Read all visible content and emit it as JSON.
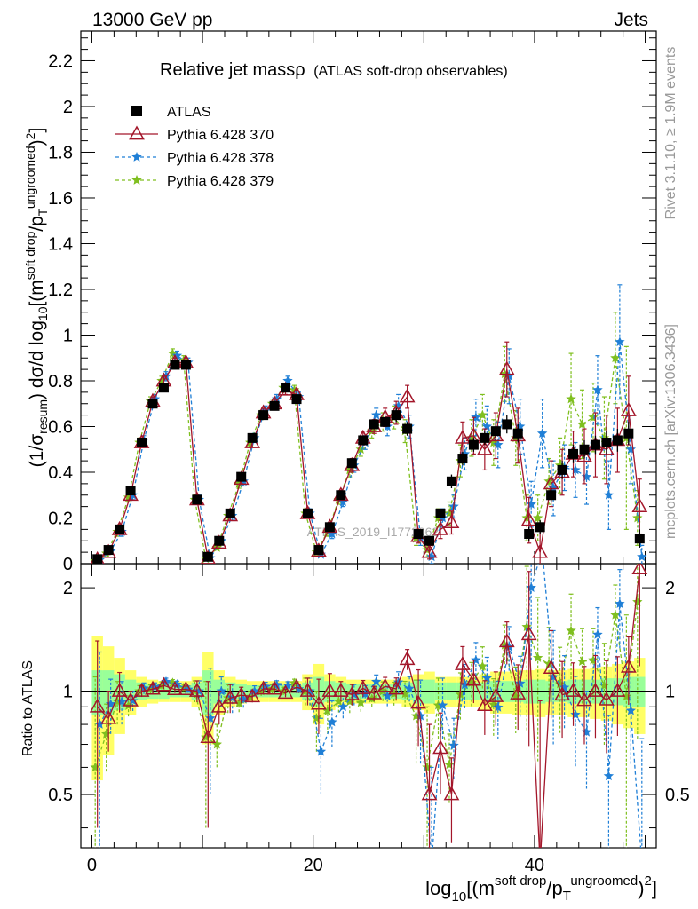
{
  "header": {
    "left": "13000 GeV pp",
    "right": "Jets"
  },
  "title": {
    "main": "Relative jet massρ",
    "sub": "(ATLAS soft-drop observables)"
  },
  "side_labels": {
    "rivet": "Rivet 3.1.10, ≥ 1.9M events",
    "mcplots": "mcplots.cern.ch [arXiv:1306.3436]"
  },
  "watermark": "ATLAS_2019_I1772062",
  "axis_labels": {
    "y_main": "(1/σresum) dσ/d log10[(msoft drop/pTungroomed)2]",
    "y_ratio": "Ratio to ATLAS",
    "x": "log10[(msoft drop/pTungroomed)2]"
  },
  "legend": [
    {
      "name": "ATLAS",
      "color": "#000000",
      "marker": "square"
    },
    {
      "name": "Pythia 6.428 370",
      "color": "#a3162a",
      "marker": "open-triangle"
    },
    {
      "name": "Pythia 6.428 378",
      "color": "#1f7fd6",
      "marker": "star"
    },
    {
      "name": "Pythia 6.428 379",
      "color": "#7fbf1f",
      "marker": "star"
    }
  ],
  "colors": {
    "band_inner": "#99ff99",
    "band_outer": "#ffff66"
  },
  "chart_data": {
    "type": "scatter",
    "x": [
      0.5,
      1.5,
      2.5,
      3.5,
      4.5,
      5.5,
      6.5,
      7.5,
      8.5,
      9.5,
      10.5,
      11.5,
      12.5,
      13.5,
      14.5,
      15.5,
      16.5,
      17.5,
      18.5,
      19.5,
      20.5,
      21.5,
      22.5,
      23.5,
      24.5,
      25.5,
      26.5,
      27.5,
      28.5,
      29.5,
      30.5,
      31.5,
      32.5,
      33.5,
      34.5,
      35.5,
      36.5,
      37.5,
      38.5,
      39.5,
      40.5,
      41.5,
      42.5,
      43.5,
      44.5,
      45.5,
      46.5,
      47.5,
      48.5,
      49.5
    ],
    "xlim": [
      -1,
      51
    ],
    "main_ylim": [
      0,
      2.33
    ],
    "ratio_ylim": [
      0.35,
      2.35
    ],
    "x_ticks": [
      0,
      20,
      40
    ],
    "main_y_ticks": [
      0,
      0.2,
      0.4,
      0.6,
      0.8,
      1,
      1.2,
      1.4,
      1.6,
      1.8,
      2,
      2.2
    ],
    "ratio_y_ticks": [
      0.5,
      1,
      2
    ],
    "data": {
      "name": "ATLAS",
      "values": [
        0.02,
        0.06,
        0.15,
        0.32,
        0.53,
        0.7,
        0.77,
        0.87,
        0.87,
        0.28,
        0.03,
        0.1,
        0.22,
        0.38,
        0.55,
        0.65,
        0.69,
        0.77,
        0.72,
        0.22,
        0.06,
        0.16,
        0.3,
        0.44,
        0.54,
        0.61,
        0.62,
        0.65,
        0.59,
        0.13,
        0.1,
        0.22,
        0.36,
        0.46,
        0.52,
        0.55,
        0.58,
        0.61,
        0.57,
        0.13,
        0.16,
        0.3,
        0.41,
        0.48,
        0.5,
        0.52,
        0.53,
        0.54,
        0.57,
        0.11
      ],
      "errors": [
        0.005,
        0.006,
        0.01,
        0.02,
        0.02,
        0.02,
        0.02,
        0.02,
        0.02,
        0.02,
        0.005,
        0.01,
        0.01,
        0.02,
        0.02,
        0.02,
        0.02,
        0.02,
        0.02,
        0.02,
        0.01,
        0.01,
        0.02,
        0.02,
        0.02,
        0.02,
        0.02,
        0.03,
        0.03,
        0.02,
        0.02,
        0.02,
        0.03,
        0.03,
        0.03,
        0.03,
        0.04,
        0.04,
        0.04,
        0.03,
        0.03,
        0.03,
        0.04,
        0.04,
        0.04,
        0.04,
        0.05,
        0.05,
        0.05,
        0.04
      ]
    },
    "series": [
      {
        "name": "Pythia 6.428 370",
        "values": [
          0.018,
          0.05,
          0.15,
          0.3,
          0.53,
          0.71,
          0.8,
          0.88,
          0.88,
          0.28,
          0.022,
          0.09,
          0.21,
          0.37,
          0.53,
          0.66,
          0.7,
          0.76,
          0.74,
          0.22,
          0.055,
          0.16,
          0.3,
          0.43,
          0.55,
          0.6,
          0.64,
          0.66,
          0.73,
          0.12,
          0.05,
          0.15,
          0.18,
          0.55,
          0.56,
          0.5,
          0.56,
          0.85,
          0.56,
          0.19,
          0.05,
          0.35,
          0.4,
          0.48,
          0.47,
          0.52,
          0.5,
          0.54,
          0.67,
          0.25
        ],
        "errors": [
          0.01,
          0.01,
          0.02,
          0.02,
          0.02,
          0.02,
          0.02,
          0.02,
          0.02,
          0.02,
          0.01,
          0.01,
          0.02,
          0.02,
          0.02,
          0.02,
          0.02,
          0.02,
          0.02,
          0.02,
          0.01,
          0.02,
          0.02,
          0.03,
          0.03,
          0.03,
          0.04,
          0.05,
          0.05,
          0.03,
          0.03,
          0.04,
          0.05,
          0.07,
          0.08,
          0.09,
          0.1,
          0.12,
          0.12,
          0.1,
          0.1,
          0.1,
          0.1,
          0.1,
          0.12,
          0.14,
          0.15,
          0.14,
          0.15,
          0.12
        ]
      },
      {
        "name": "Pythia 6.428 378",
        "values": [
          0.016,
          0.055,
          0.14,
          0.3,
          0.54,
          0.72,
          0.82,
          0.91,
          0.88,
          0.28,
          0.025,
          0.1,
          0.21,
          0.36,
          0.55,
          0.67,
          0.72,
          0.8,
          0.73,
          0.22,
          0.04,
          0.13,
          0.27,
          0.43,
          0.53,
          0.65,
          0.6,
          0.69,
          0.6,
          0.11,
          0.03,
          0.2,
          0.25,
          0.48,
          0.64,
          0.6,
          0.52,
          0.82,
          0.6,
          0.26,
          0.57,
          0.33,
          0.42,
          0.41,
          0.38,
          0.76,
          0.3,
          0.97,
          0.5,
          0.03
        ],
        "errors": [
          0.01,
          0.01,
          0.02,
          0.02,
          0.02,
          0.02,
          0.02,
          0.02,
          0.02,
          0.02,
          0.01,
          0.01,
          0.02,
          0.02,
          0.02,
          0.02,
          0.02,
          0.02,
          0.02,
          0.02,
          0.01,
          0.02,
          0.02,
          0.03,
          0.03,
          0.03,
          0.04,
          0.05,
          0.05,
          0.03,
          0.03,
          0.04,
          0.05,
          0.07,
          0.08,
          0.09,
          0.1,
          0.12,
          0.12,
          0.1,
          0.15,
          0.12,
          0.1,
          0.12,
          0.12,
          0.15,
          0.15,
          0.25,
          0.15,
          0.05
        ]
      },
      {
        "name": "Pythia 6.428 379",
        "values": [
          0.012,
          0.045,
          0.14,
          0.29,
          0.53,
          0.71,
          0.8,
          0.92,
          0.89,
          0.28,
          0.022,
          0.07,
          0.21,
          0.35,
          0.53,
          0.65,
          0.7,
          0.77,
          0.76,
          0.22,
          0.05,
          0.14,
          0.28,
          0.41,
          0.5,
          0.58,
          0.62,
          0.64,
          0.58,
          0.11,
          0.06,
          0.2,
          0.22,
          0.45,
          0.55,
          0.65,
          0.53,
          0.83,
          0.55,
          0.2,
          0.2,
          0.36,
          0.43,
          0.72,
          0.61,
          0.64,
          0.55,
          0.9,
          0.55,
          0.2
        ],
        "errors": [
          0.01,
          0.01,
          0.02,
          0.02,
          0.02,
          0.02,
          0.02,
          0.02,
          0.02,
          0.02,
          0.01,
          0.01,
          0.02,
          0.02,
          0.02,
          0.02,
          0.02,
          0.02,
          0.02,
          0.02,
          0.01,
          0.02,
          0.02,
          0.03,
          0.03,
          0.03,
          0.04,
          0.05,
          0.05,
          0.03,
          0.03,
          0.04,
          0.05,
          0.07,
          0.08,
          0.09,
          0.1,
          0.12,
          0.12,
          0.1,
          0.1,
          0.1,
          0.12,
          0.2,
          0.15,
          0.15,
          0.18,
          0.2,
          0.4,
          0.12
        ]
      }
    ],
    "ratio_band_inner": [
      0.15,
      0.15,
      0.12,
      0.08,
      0.06,
      0.05,
      0.05,
      0.04,
      0.04,
      0.06,
      0.15,
      0.08,
      0.06,
      0.05,
      0.04,
      0.04,
      0.04,
      0.04,
      0.04,
      0.06,
      0.1,
      0.07,
      0.06,
      0.05,
      0.05,
      0.05,
      0.05,
      0.05,
      0.06,
      0.08,
      0.08,
      0.06,
      0.06,
      0.06,
      0.06,
      0.06,
      0.07,
      0.07,
      0.07,
      0.08,
      0.08,
      0.07,
      0.07,
      0.08,
      0.08,
      0.08,
      0.09,
      0.09,
      0.1,
      0.1
    ],
    "ratio_band_outer": [
      0.45,
      0.35,
      0.25,
      0.15,
      0.1,
      0.08,
      0.07,
      0.07,
      0.07,
      0.1,
      0.3,
      0.15,
      0.1,
      0.08,
      0.07,
      0.07,
      0.07,
      0.07,
      0.07,
      0.12,
      0.2,
      0.12,
      0.1,
      0.08,
      0.08,
      0.08,
      0.08,
      0.08,
      0.1,
      0.12,
      0.14,
      0.1,
      0.1,
      0.1,
      0.1,
      0.12,
      0.14,
      0.14,
      0.15,
      0.15,
      0.16,
      0.15,
      0.15,
      0.16,
      0.16,
      0.17,
      0.18,
      0.2,
      0.22,
      0.25
    ]
  }
}
